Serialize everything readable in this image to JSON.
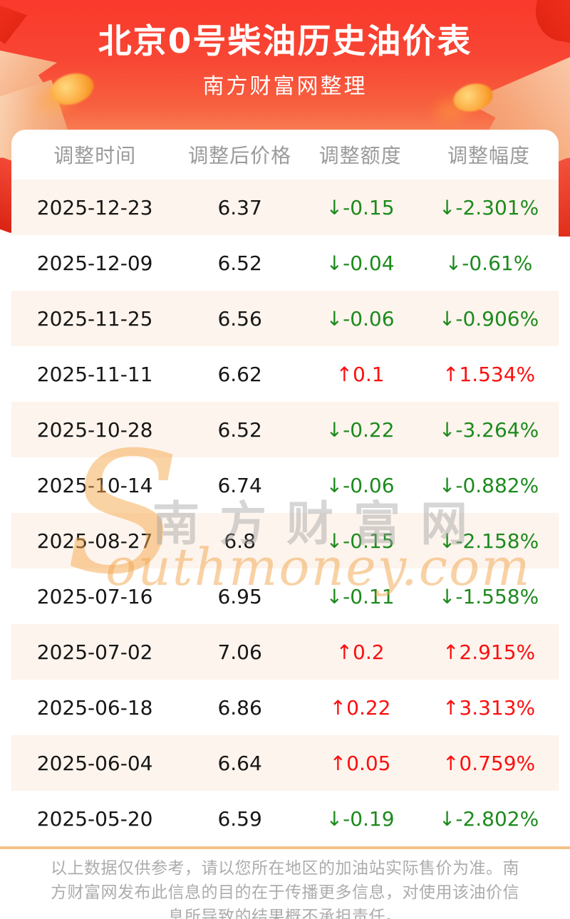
{
  "header": {
    "title": "北京0号柴油历史油价表",
    "subtitle": "南方财富网整理"
  },
  "table": {
    "columns": [
      "调整时间",
      "调整后价格",
      "调整额度",
      "调整幅度"
    ],
    "rows": [
      {
        "date": "2025-12-23",
        "price": "6.37",
        "change": "↓-0.15",
        "pct": "↓-2.301%",
        "direction": "down"
      },
      {
        "date": "2025-12-09",
        "price": "6.52",
        "change": "↓-0.04",
        "pct": "↓-0.61%",
        "direction": "down"
      },
      {
        "date": "2025-11-25",
        "price": "6.56",
        "change": "↓-0.06",
        "pct": "↓-0.906%",
        "direction": "down"
      },
      {
        "date": "2025-11-11",
        "price": "6.62",
        "change": "↑0.1",
        "pct": "↑1.534%",
        "direction": "up"
      },
      {
        "date": "2025-10-28",
        "price": "6.52",
        "change": "↓-0.22",
        "pct": "↓-3.264%",
        "direction": "down"
      },
      {
        "date": "2025-10-14",
        "price": "6.74",
        "change": "↓-0.06",
        "pct": "↓-0.882%",
        "direction": "down"
      },
      {
        "date": "2025-08-27",
        "price": "6.8",
        "change": "↓-0.15",
        "pct": "↓-2.158%",
        "direction": "down"
      },
      {
        "date": "2025-07-16",
        "price": "6.95",
        "change": "↓-0.11",
        "pct": "↓-1.558%",
        "direction": "down"
      },
      {
        "date": "2025-07-02",
        "price": "7.06",
        "change": "↑0.2",
        "pct": "↑2.915%",
        "direction": "up"
      },
      {
        "date": "2025-06-18",
        "price": "6.86",
        "change": "↑0.22",
        "pct": "↑3.313%",
        "direction": "up"
      },
      {
        "date": "2025-06-04",
        "price": "6.64",
        "change": "↑0.05",
        "pct": "↑0.759%",
        "direction": "up"
      },
      {
        "date": "2025-05-20",
        "price": "6.59",
        "change": "↓-0.19",
        "pct": "↓-2.802%",
        "direction": "down"
      }
    ]
  },
  "watermark": {
    "initial": "S",
    "cn": "南方财富网",
    "en": "outhmoney.com"
  },
  "footer": {
    "disclaimer": "以上数据仅供参考，请以您所在地区的加油站实际售价为准。南方财富网发布此信息的目的在于传播更多信息，对使用该油价信息所导致的结果概不承担责任。"
  },
  "colors": {
    "hero_red": "#fa392b",
    "stripe": "#fdf4ed",
    "up": "#fb1010",
    "down": "#1d8a1d",
    "divider": "#f5c289"
  }
}
